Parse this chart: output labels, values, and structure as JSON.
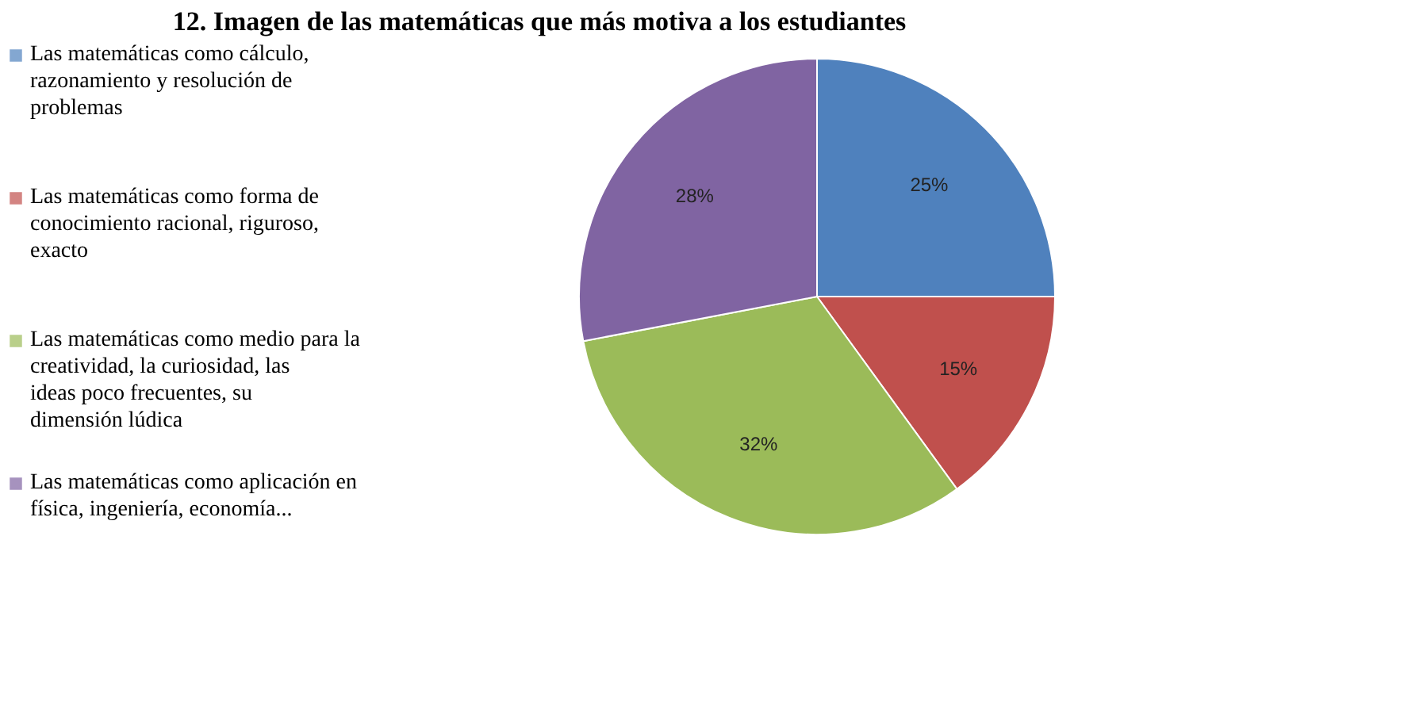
{
  "chart_data": {
    "type": "pie",
    "title": "12. Imagen de las matemáticas que más motiva a los estudiantes",
    "categories": [
      "Las matemáticas como cálculo, razonamiento y resolución de problemas",
      "Las matemáticas como forma de conocimiento racional, riguroso, exacto",
      "Las matemáticas como medio para la creatividad, la curiosidad, las ideas poco frecuentes, su dimensión lúdica",
      "Las matemáticas como aplicación en física, ingeniería, economía..."
    ],
    "values": [
      25,
      15,
      32,
      28
    ],
    "value_labels": [
      "25%",
      "15%",
      "32%",
      "28%"
    ],
    "colors": [
      "#4f81bd",
      "#c0504d",
      "#9bbb59",
      "#8064a2"
    ],
    "legend": "left"
  }
}
